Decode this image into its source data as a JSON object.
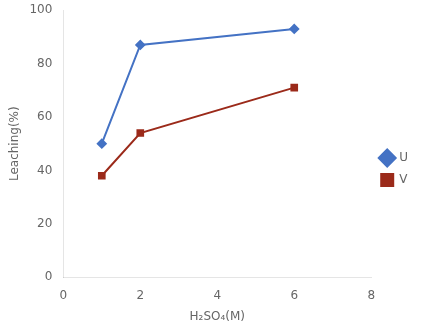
{
  "chart_data": {
    "type": "line",
    "x": [
      1,
      2,
      6
    ],
    "series": [
      {
        "name": "U",
        "color": "#4472C4",
        "marker": "diamond",
        "values": [
          50,
          87,
          93
        ]
      },
      {
        "name": "V",
        "color": "#9B2A1A",
        "marker": "square",
        "values": [
          38,
          54,
          71
        ]
      }
    ],
    "xlabel": "H₂SO₄(M)",
    "ylabel": "Leaching(%)",
    "xlim": [
      0,
      8
    ],
    "ylim": [
      0,
      100
    ],
    "xticks": [
      0,
      2,
      4,
      6,
      8
    ],
    "yticks": [
      0,
      20,
      40,
      60,
      80,
      100
    ],
    "legend": "right",
    "grid": false
  }
}
